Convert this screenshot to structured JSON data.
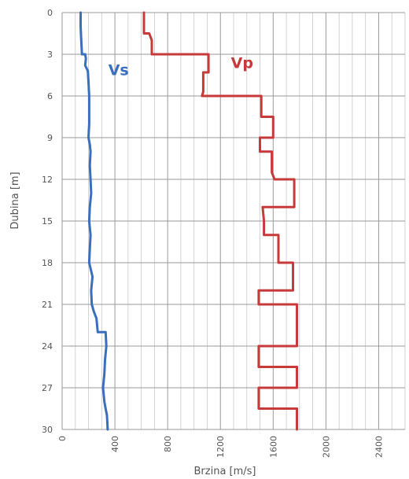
{
  "chart_data": {
    "type": "line",
    "xlabel": "Brzina [m/s]",
    "ylabel": "Dubina [m]",
    "xlim": [
      0,
      2600
    ],
    "ylim": [
      30,
      0
    ],
    "x_ticks": [
      0,
      400,
      800,
      1200,
      1600,
      2000,
      2400
    ],
    "x_tick_labels": [
      "0",
      "400",
      "800",
      "1200",
      "1600",
      "2000",
      "2400"
    ],
    "y_ticks": [
      0,
      3,
      6,
      9,
      12,
      15,
      18,
      21,
      24,
      27,
      30
    ],
    "y_tick_labels": [
      "0",
      "3",
      "6",
      "9",
      "12",
      "15",
      "18",
      "21",
      "24",
      "27",
      "30"
    ],
    "grid": true,
    "series": [
      {
        "name": "Vs",
        "color": "#3a6fbe",
        "points": [
          [
            140,
            0
          ],
          [
            140,
            1
          ],
          [
            145,
            2
          ],
          [
            150,
            3
          ],
          [
            175,
            3
          ],
          [
            180,
            3.3
          ],
          [
            175,
            3.8
          ],
          [
            195,
            4.2
          ],
          [
            200,
            5
          ],
          [
            205,
            6
          ],
          [
            205,
            8
          ],
          [
            200,
            9
          ],
          [
            210,
            9.5
          ],
          [
            215,
            10
          ],
          [
            210,
            11
          ],
          [
            215,
            12
          ],
          [
            220,
            13
          ],
          [
            210,
            14
          ],
          [
            205,
            15
          ],
          [
            215,
            16
          ],
          [
            210,
            17
          ],
          [
            205,
            18
          ],
          [
            230,
            19
          ],
          [
            220,
            20
          ],
          [
            225,
            21
          ],
          [
            240,
            21.5
          ],
          [
            260,
            22
          ],
          [
            270,
            23
          ],
          [
            330,
            23
          ],
          [
            335,
            24
          ],
          [
            325,
            25
          ],
          [
            320,
            26
          ],
          [
            310,
            27
          ],
          [
            320,
            28
          ],
          [
            330,
            28.5
          ],
          [
            340,
            29
          ],
          [
            345,
            30
          ]
        ]
      },
      {
        "name": "Vp",
        "color": "#c8393a",
        "points": [
          [
            620,
            0
          ],
          [
            620,
            1.5
          ],
          [
            660,
            1.5
          ],
          [
            680,
            2
          ],
          [
            680,
            3
          ],
          [
            1110,
            3
          ],
          [
            1110,
            4.3
          ],
          [
            1070,
            4.3
          ],
          [
            1070,
            5.7
          ],
          [
            1060,
            6
          ],
          [
            1510,
            6
          ],
          [
            1510,
            7.5
          ],
          [
            1600,
            7.5
          ],
          [
            1600,
            9
          ],
          [
            1500,
            9
          ],
          [
            1500,
            10
          ],
          [
            1590,
            10
          ],
          [
            1590,
            11.5
          ],
          [
            1610,
            12
          ],
          [
            1760,
            12
          ],
          [
            1760,
            14
          ],
          [
            1520,
            14
          ],
          [
            1530,
            15
          ],
          [
            1530,
            16
          ],
          [
            1640,
            16
          ],
          [
            1640,
            18
          ],
          [
            1750,
            18
          ],
          [
            1750,
            20
          ],
          [
            1490,
            20
          ],
          [
            1490,
            21
          ],
          [
            1780,
            21
          ],
          [
            1780,
            24
          ],
          [
            1490,
            24
          ],
          [
            1490,
            25.5
          ],
          [
            1780,
            25.5
          ],
          [
            1780,
            27
          ],
          [
            1490,
            27
          ],
          [
            1490,
            28.5
          ],
          [
            1780,
            28.5
          ],
          [
            1780,
            30
          ]
        ]
      }
    ],
    "annotations": [
      {
        "text": "Vs",
        "series": "Vs",
        "x": 350,
        "y": 4.5
      },
      {
        "text": "Vp",
        "series": "Vp",
        "x": 1280,
        "y": 4.0
      }
    ]
  }
}
